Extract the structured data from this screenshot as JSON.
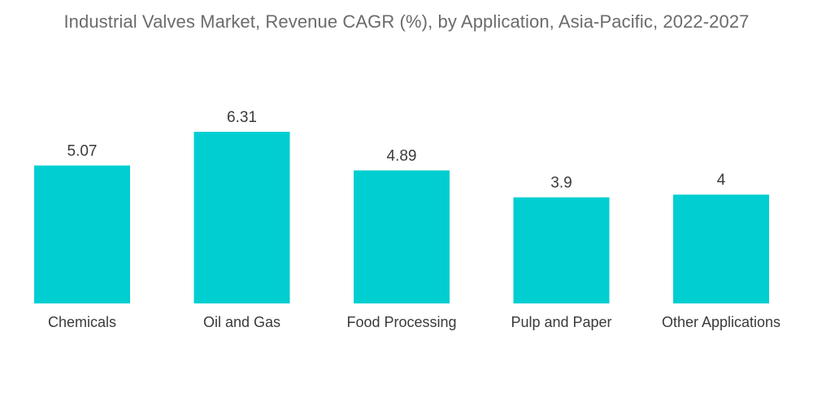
{
  "chart_data": {
    "type": "bar",
    "title": "Industrial Valves Market, Revenue CAGR (%), by Application, Asia-Pacific, 2022-2027",
    "xlabel": "",
    "ylabel": "",
    "categories": [
      "Chemicals",
      "Oil and Gas",
      "Food Processing",
      "Pulp and Paper",
      "Other Applications"
    ],
    "values": [
      5.07,
      6.31,
      4.89,
      3.9,
      4
    ],
    "value_labels": [
      "5.07",
      "6.31",
      "4.89",
      "3.9",
      "4"
    ],
    "ylim": [
      0,
      6.31
    ],
    "grid": false,
    "legend": "none",
    "bar_color": "#00CED1"
  }
}
